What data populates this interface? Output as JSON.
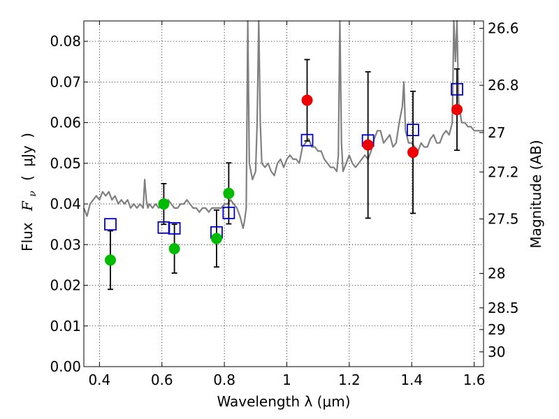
{
  "chart_data": {
    "type": "scatter",
    "xlabel": "Wavelength  λ (μm)",
    "ylabel": "Flux  F_ν  ( μJy )",
    "ylabel_parts": [
      "Flux",
      "F",
      "ν",
      "(",
      "μJy",
      ")"
    ],
    "y2label": "Magnitude (AB)",
    "xlim": [
      0.35,
      1.63
    ],
    "ylim": [
      0.0,
      0.085
    ],
    "grid": true,
    "x_ticks": [
      {
        "value": 0.4,
        "label": "0.4"
      },
      {
        "value": 0.6,
        "label": "0.6"
      },
      {
        "value": 0.8,
        "label": "0.8"
      },
      {
        "value": 1.0,
        "label": "1"
      },
      {
        "value": 1.2,
        "label": "1.2"
      },
      {
        "value": 1.4,
        "label": "1.4"
      },
      {
        "value": 1.6,
        "label": "1.6"
      }
    ],
    "y_ticks": [
      {
        "value": 0.0,
        "label": "0.00"
      },
      {
        "value": 0.01,
        "label": "0.01"
      },
      {
        "value": 0.02,
        "label": "0.02"
      },
      {
        "value": 0.03,
        "label": "0.03"
      },
      {
        "value": 0.04,
        "label": "0.04"
      },
      {
        "value": 0.05,
        "label": "0.05"
      },
      {
        "value": 0.06,
        "label": "0.06"
      },
      {
        "value": 0.07,
        "label": "0.07"
      },
      {
        "value": 0.08,
        "label": "0.08"
      }
    ],
    "mag_ticks": [
      {
        "mag": 26.6,
        "label": "26.6"
      },
      {
        "mag": 26.8,
        "label": "26.8"
      },
      {
        "mag": 27.0,
        "label": "27"
      },
      {
        "mag": 27.2,
        "label": "27.2"
      },
      {
        "mag": 27.5,
        "label": "27.5"
      },
      {
        "mag": 28.0,
        "label": "28"
      },
      {
        "mag": 28.5,
        "label": "28.5"
      },
      {
        "mag": 29.0,
        "label": "29"
      },
      {
        "mag": 30.0,
        "label": "30"
      }
    ],
    "series": [
      {
        "name": "model_spectrum",
        "kind": "line",
        "color": "#808080",
        "x": [
          0.35,
          0.36,
          0.37,
          0.38,
          0.39,
          0.4,
          0.41,
          0.42,
          0.43,
          0.44,
          0.45,
          0.46,
          0.47,
          0.48,
          0.49,
          0.5,
          0.51,
          0.52,
          0.53,
          0.54,
          0.545,
          0.55,
          0.555,
          0.56,
          0.57,
          0.58,
          0.59,
          0.6,
          0.61,
          0.62,
          0.63,
          0.64,
          0.65,
          0.66,
          0.67,
          0.68,
          0.69,
          0.7,
          0.71,
          0.72,
          0.73,
          0.74,
          0.75,
          0.76,
          0.77,
          0.78,
          0.79,
          0.8,
          0.81,
          0.82,
          0.83,
          0.84,
          0.85,
          0.86,
          0.865,
          0.87,
          0.875,
          0.88,
          0.89,
          0.9,
          0.905,
          0.91,
          0.915,
          0.92,
          0.93,
          0.94,
          0.95,
          0.96,
          0.97,
          0.98,
          0.99,
          1.0,
          1.01,
          1.02,
          1.03,
          1.04,
          1.05,
          1.06,
          1.07,
          1.08,
          1.09,
          1.1,
          1.11,
          1.12,
          1.13,
          1.14,
          1.15,
          1.16,
          1.165,
          1.17,
          1.175,
          1.18,
          1.19,
          1.2,
          1.21,
          1.22,
          1.23,
          1.24,
          1.25,
          1.26,
          1.27,
          1.28,
          1.29,
          1.3,
          1.31,
          1.32,
          1.33,
          1.34,
          1.35,
          1.36,
          1.37,
          1.375,
          1.38,
          1.39,
          1.4,
          1.41,
          1.42,
          1.43,
          1.44,
          1.45,
          1.46,
          1.47,
          1.48,
          1.49,
          1.5,
          1.51,
          1.52,
          1.53,
          1.535,
          1.54,
          1.545,
          1.55,
          1.56,
          1.57,
          1.58,
          1.59,
          1.6,
          1.61,
          1.62,
          1.63
        ],
        "y": [
          0.039,
          0.037,
          0.04,
          0.041,
          0.042,
          0.041,
          0.043,
          0.042,
          0.043,
          0.041,
          0.042,
          0.04,
          0.041,
          0.04,
          0.041,
          0.039,
          0.04,
          0.039,
          0.04,
          0.039,
          0.046,
          0.041,
          0.039,
          0.04,
          0.039,
          0.04,
          0.039,
          0.04,
          0.039,
          0.041,
          0.04,
          0.039,
          0.039,
          0.04,
          0.04,
          0.041,
          0.04,
          0.039,
          0.039,
          0.038,
          0.039,
          0.039,
          0.038,
          0.039,
          0.039,
          0.039,
          0.039,
          0.04,
          0.04,
          0.041,
          0.04,
          0.039,
          0.037,
          0.034,
          0.036,
          0.039,
          0.085,
          0.05,
          0.046,
          0.048,
          0.06,
          0.085,
          0.06,
          0.05,
          0.049,
          0.05,
          0.048,
          0.047,
          0.05,
          0.051,
          0.049,
          0.051,
          0.052,
          0.051,
          0.051,
          0.05,
          0.054,
          0.055,
          0.056,
          0.054,
          0.054,
          0.053,
          0.053,
          0.051,
          0.05,
          0.049,
          0.049,
          0.048,
          0.052,
          0.085,
          0.055,
          0.048,
          0.05,
          0.052,
          0.05,
          0.049,
          0.05,
          0.051,
          0.052,
          0.051,
          0.053,
          0.056,
          0.058,
          0.058,
          0.055,
          0.056,
          0.057,
          0.054,
          0.055,
          0.06,
          0.064,
          0.07,
          0.058,
          0.055,
          0.055,
          0.054,
          0.053,
          0.055,
          0.054,
          0.054,
          0.056,
          0.057,
          0.055,
          0.055,
          0.057,
          0.058,
          0.057,
          0.06,
          0.085,
          0.075,
          0.085,
          0.065,
          0.06,
          0.06,
          0.059,
          0.059,
          0.058,
          0.058,
          0.058,
          0.058
        ]
      },
      {
        "name": "model_bandpass_fluxes",
        "kind": "open-square",
        "color": "#0000cc",
        "x": [
          0.435,
          0.606,
          0.64,
          0.775,
          0.814,
          1.065,
          1.26,
          1.404,
          1.545
        ],
        "y": [
          0.035,
          0.0342,
          0.034,
          0.033,
          0.0378,
          0.0557,
          0.0556,
          0.0582,
          0.0682
        ]
      },
      {
        "name": "optical_detections",
        "kind": "filled-circle",
        "color": "#00bb00",
        "x": [
          0.435,
          0.606,
          0.64,
          0.775,
          0.814
        ],
        "y": [
          0.0262,
          0.04,
          0.029,
          0.0315,
          0.0426
        ],
        "yerr": [
          0.0072,
          0.005,
          0.006,
          0.007,
          0.0075
        ]
      },
      {
        "name": "nir_detections",
        "kind": "filled-circle",
        "color": "#ee0000",
        "x": [
          1.065,
          1.26,
          1.404,
          1.545
        ],
        "y": [
          0.0655,
          0.0545,
          0.0527,
          0.0632
        ],
        "yerr": [
          0.01,
          0.018,
          0.015,
          0.01
        ]
      }
    ]
  }
}
